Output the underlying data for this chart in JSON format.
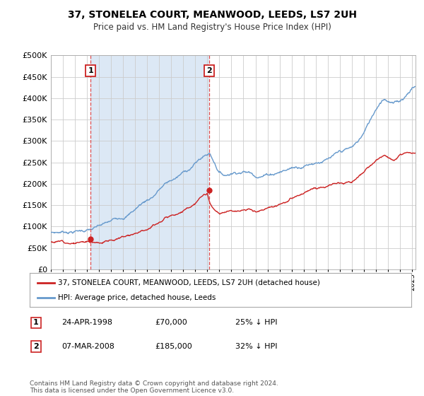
{
  "title": "37, STONELEA COURT, MEANWOOD, LEEDS, LS7 2UH",
  "subtitle": "Price paid vs. HM Land Registry's House Price Index (HPI)",
  "background_color": "#ffffff",
  "plot_bg_color": "#ffffff",
  "shaded_region_color": "#dce8f5",
  "sale1_date": 1998.31,
  "sale1_price": 70000,
  "sale1_label": "1",
  "sale1_info": "24-APR-1998",
  "sale1_pct": "25% ↓ HPI",
  "sale2_date": 2008.18,
  "sale2_price": 185000,
  "sale2_label": "2",
  "sale2_info": "07-MAR-2008",
  "sale2_pct": "32% ↓ HPI",
  "legend_property": "37, STONELEA COURT, MEANWOOD, LEEDS, LS7 2UH (detached house)",
  "legend_hpi": "HPI: Average price, detached house, Leeds",
  "footnote": "Contains HM Land Registry data © Crown copyright and database right 2024.\nThis data is licensed under the Open Government Licence v3.0.",
  "property_color": "#cc2222",
  "hpi_color": "#6699cc",
  "vline_color": "#dd3333",
  "marker_box_color": "#cc2222",
  "ylim": [
    0,
    500000
  ],
  "xlim": [
    1995.0,
    2025.3
  ]
}
